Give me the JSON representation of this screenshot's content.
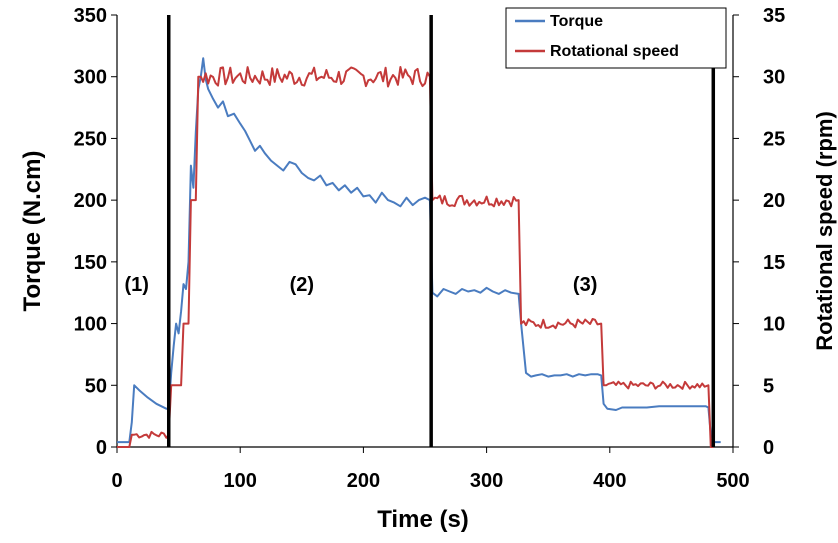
{
  "chart_data": {
    "type": "line",
    "xlabel": "Time (s)",
    "ylabel_left": "Torque (N.cm)",
    "ylabel_right": "Rotational speed (rpm)",
    "xlim": [
      0,
      500
    ],
    "ylim_left": [
      0,
      350
    ],
    "ylim_right": [
      0,
      35
    ],
    "x_ticks": [
      0,
      100,
      200,
      300,
      400,
      500
    ],
    "y_left_ticks": [
      0,
      50,
      100,
      150,
      200,
      250,
      300,
      350
    ],
    "y_right_ticks": [
      0,
      5,
      10,
      15,
      20,
      25,
      30,
      35
    ],
    "grid": false,
    "legend_position": "top-right",
    "phase_boundaries": [
      42,
      255,
      484
    ],
    "annotations": [
      {
        "text": "(1)",
        "x": 16,
        "y": 132
      },
      {
        "text": "(2)",
        "x": 150,
        "y": 132
      },
      {
        "text": "(3)",
        "x": 380,
        "y": 132
      }
    ],
    "series": [
      {
        "name": "Torque",
        "axis": "left",
        "color": "#4a7cc0",
        "points": [
          [
            0,
            4
          ],
          [
            10,
            4
          ],
          [
            12,
            20
          ],
          [
            14,
            50
          ],
          [
            18,
            46
          ],
          [
            25,
            40
          ],
          [
            32,
            35
          ],
          [
            40,
            31
          ],
          [
            42,
            31
          ],
          [
            44,
            60
          ],
          [
            46,
            82
          ],
          [
            48,
            100
          ],
          [
            50,
            92
          ],
          [
            52,
            110
          ],
          [
            54,
            132
          ],
          [
            56,
            128
          ],
          [
            58,
            150
          ],
          [
            60,
            228
          ],
          [
            62,
            210
          ],
          [
            64,
            255
          ],
          [
            66,
            290
          ],
          [
            68,
            300
          ],
          [
            70,
            315
          ],
          [
            72,
            298
          ],
          [
            74,
            290
          ],
          [
            78,
            282
          ],
          [
            82,
            275
          ],
          [
            86,
            280
          ],
          [
            90,
            268
          ],
          [
            95,
            270
          ],
          [
            100,
            262
          ],
          [
            104,
            256
          ],
          [
            108,
            248
          ],
          [
            112,
            240
          ],
          [
            116,
            244
          ],
          [
            120,
            238
          ],
          [
            125,
            232
          ],
          [
            130,
            228
          ],
          [
            135,
            224
          ],
          [
            140,
            231
          ],
          [
            145,
            229
          ],
          [
            150,
            222
          ],
          [
            155,
            218
          ],
          [
            160,
            216
          ],
          [
            165,
            220
          ],
          [
            170,
            212
          ],
          [
            175,
            214
          ],
          [
            180,
            208
          ],
          [
            185,
            212
          ],
          [
            190,
            206
          ],
          [
            195,
            210
          ],
          [
            200,
            203
          ],
          [
            205,
            204
          ],
          [
            210,
            198
          ],
          [
            215,
            206
          ],
          [
            220,
            200
          ],
          [
            225,
            198
          ],
          [
            230,
            195
          ],
          [
            235,
            202
          ],
          [
            240,
            196
          ],
          [
            245,
            200
          ],
          [
            250,
            202
          ],
          [
            254,
            200
          ],
          [
            256,
            125
          ],
          [
            260,
            122
          ],
          [
            265,
            128
          ],
          [
            270,
            126
          ],
          [
            275,
            124
          ],
          [
            280,
            128
          ],
          [
            285,
            126
          ],
          [
            290,
            127
          ],
          [
            295,
            125
          ],
          [
            300,
            129
          ],
          [
            305,
            126
          ],
          [
            310,
            124
          ],
          [
            315,
            127
          ],
          [
            320,
            125
          ],
          [
            326,
            124
          ],
          [
            328,
            100
          ],
          [
            332,
            60
          ],
          [
            336,
            57
          ],
          [
            340,
            58
          ],
          [
            345,
            59
          ],
          [
            350,
            57
          ],
          [
            355,
            58
          ],
          [
            360,
            58
          ],
          [
            365,
            59
          ],
          [
            370,
            57
          ],
          [
            375,
            59
          ],
          [
            380,
            58
          ],
          [
            385,
            59
          ],
          [
            390,
            59
          ],
          [
            393,
            58
          ],
          [
            395,
            35
          ],
          [
            398,
            31
          ],
          [
            405,
            30
          ],
          [
            410,
            32
          ],
          [
            420,
            32
          ],
          [
            430,
            32
          ],
          [
            440,
            33
          ],
          [
            450,
            33
          ],
          [
            460,
            33
          ],
          [
            470,
            33
          ],
          [
            478,
            33
          ],
          [
            480,
            32
          ],
          [
            482,
            10
          ],
          [
            485,
            4
          ],
          [
            490,
            4
          ]
        ]
      },
      {
        "name": "Rotational speed",
        "axis": "right",
        "color": "#c43a3a",
        "noise_amplitude": [
          0,
          0,
          0.2,
          0,
          0.3,
          0,
          0.8,
          0.5,
          0.4,
          0.3,
          0,
          0.2
        ],
        "steps": [
          [
            0,
            0
          ],
          [
            10,
            0
          ],
          [
            12,
            1
          ],
          [
            42,
            1
          ],
          [
            44,
            5
          ],
          [
            52,
            5
          ],
          [
            54,
            10
          ],
          [
            58,
            10
          ],
          [
            60,
            20
          ],
          [
            64,
            20
          ],
          [
            66,
            30
          ],
          [
            254,
            30
          ],
          [
            256,
            20
          ],
          [
            326,
            20
          ],
          [
            328,
            10
          ],
          [
            393,
            10
          ],
          [
            395,
            5
          ],
          [
            480,
            5
          ],
          [
            482,
            0
          ],
          [
            484,
            0
          ]
        ]
      }
    ]
  }
}
